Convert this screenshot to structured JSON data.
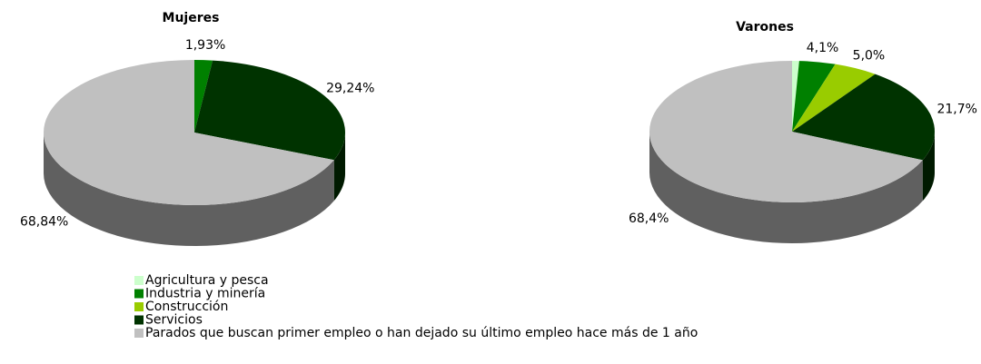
{
  "legend": {
    "categories": [
      "Agricultura y pesca",
      "Industria y minería",
      "Construcción",
      "Servicios",
      "Parados que buscan primer empleo o han dejado su último empleo hace más de 1 año"
    ],
    "colors": [
      "#ccffcc",
      "#008000",
      "#99cc00",
      "#003300",
      "#c0c0c0"
    ]
  },
  "chart_data": [
    {
      "type": "pie",
      "title": "Mujeres",
      "values": [
        null,
        1.93,
        null,
        29.24,
        68.84
      ],
      "value_labels": [
        null,
        "1,93%",
        null,
        "29,24%",
        "68,84%"
      ]
    },
    {
      "type": "pie",
      "title": "Varones",
      "values": [
        0.8,
        4.1,
        5.0,
        21.7,
        68.4
      ],
      "value_labels": [
        null,
        "4,1%",
        "5,0%",
        "21,7%",
        "68,4%"
      ]
    }
  ]
}
